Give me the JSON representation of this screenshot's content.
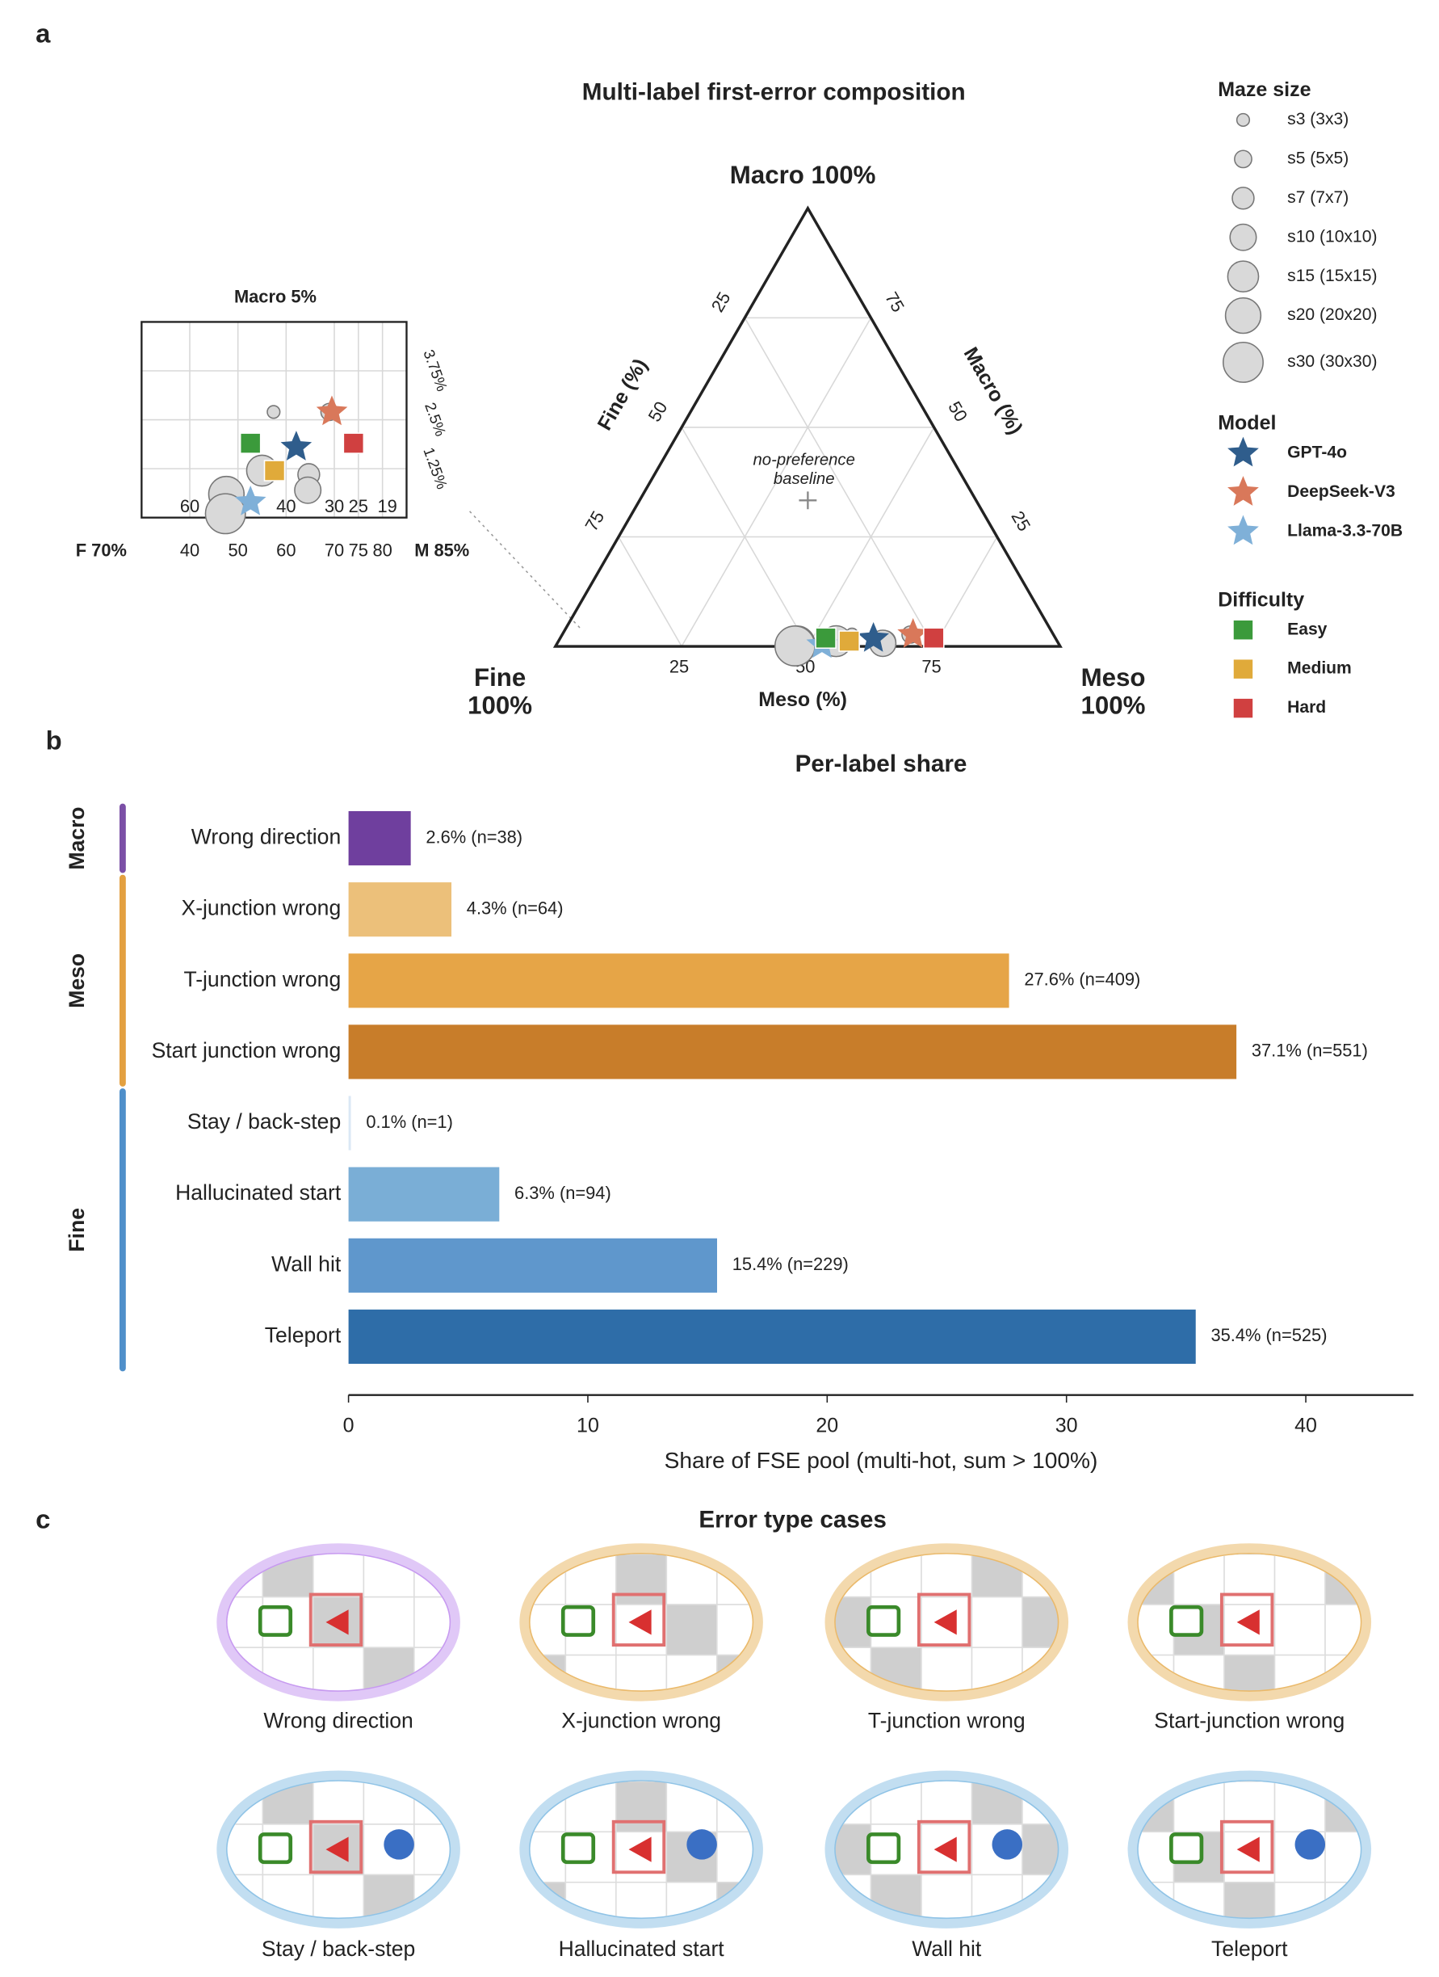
{
  "panel_labels": [
    "a",
    "b",
    "c"
  ],
  "chart_data": [
    {
      "type": "ternary",
      "title": "Multi-label first-error composition",
      "corners": {
        "macro": [
          "Macro 100%"
        ],
        "fine": [
          "Fine",
          "100%"
        ],
        "meso": [
          "Meso",
          "100%"
        ]
      },
      "axis_labels": {
        "fine": "Fine (%)",
        "macro": "Macro (%)",
        "meso": "Meso (%)"
      },
      "corner_colors": {
        "macro": "#7b4fa6",
        "fine": "#4f8fca",
        "meso": "#e3a040"
      },
      "ticks": [
        25,
        50,
        75
      ],
      "grid": true,
      "baseline": {
        "label": [
          "no-preference",
          "baseline"
        ],
        "values": [
          33.3,
          33.3,
          33.3
        ]
      },
      "groups": [
        {
          "title": "Maze size",
          "marker": "circle",
          "series": [
            {
              "name": "s3 (3x3)",
              "color": "#d9d9d9",
              "values": [
                39.9,
                57.4,
                2.7
              ]
            },
            {
              "name": "s5 (5x5)",
              "color": "#d9d9d9",
              "values": [
                28.3,
                69.0,
                2.7
              ]
            },
            {
              "name": "s7 (7x7)",
              "color": "#d9d9d9",
              "values": [
                34.2,
                64.7,
                1.1
              ]
            },
            {
              "name": "s10 (10x10)",
              "color": "#d9d9d9",
              "values": [
                34.8,
                64.5,
                0.7
              ]
            },
            {
              "name": "s15 (15x15)",
              "color": "#d9d9d9",
              "values": [
                43.8,
                55.0,
                1.2
              ]
            },
            {
              "name": "s20 (20x20)",
              "color": "#d9d9d9",
              "values": [
                51.8,
                47.6,
                0.6
              ]
            },
            {
              "name": "s30 (30x30)",
              "color": "#d9d9d9",
              "values": [
                52.5,
                47.4,
                0.1
              ]
            }
          ]
        },
        {
          "title": "Model",
          "marker": "star",
          "series": [
            {
              "name": "GPT-4o",
              "color": "#2f5d8c",
              "values": [
                36.1,
                62.1,
                1.8
              ]
            },
            {
              "name": "DeepSeek-V3",
              "color": "#d9785a",
              "values": [
                27.8,
                69.5,
                2.7
              ]
            },
            {
              "name": "Llama-3.3-70B",
              "color": "#7fb0d8",
              "values": [
                47.0,
                52.6,
                0.4
              ]
            }
          ]
        },
        {
          "title": "Difficulty",
          "marker": "square",
          "series": [
            {
              "name": "Easy",
              "color": "#3b9a3b",
              "values": [
                45.5,
                52.6,
                1.9
              ]
            },
            {
              "name": "Medium",
              "color": "#e0aa3a",
              "values": [
                41.2,
                57.6,
                1.2
              ]
            },
            {
              "name": "Hard",
              "color": "#d04040",
              "values": [
                24.1,
                74.0,
                1.9
              ]
            }
          ]
        }
      ],
      "inset": {
        "title": "Macro 5%",
        "fine_label": "F 70%",
        "meso_label": "M 85%",
        "meso_lim": [
          30,
          85
        ],
        "macro_lim": [
          0,
          5
        ],
        "meso_ticks": [
          40,
          50,
          60,
          70,
          75,
          80
        ],
        "fine_ticks": [
          60,
          40,
          30,
          25,
          19
        ],
        "macro_ticks": [
          {
            "value": 1.25,
            "label": "1.25%"
          },
          {
            "value": 2.5,
            "label": "2.5%"
          },
          {
            "value": 3.75,
            "label": "3.75%"
          }
        ]
      }
    },
    {
      "type": "bar",
      "orientation": "horizontal",
      "title": "Per-label share",
      "xlabel": "Share of FSE pool (multi-hot, sum > 100%)",
      "xlim": [
        0,
        44.5
      ],
      "xticks": [
        0,
        10,
        20,
        30,
        40
      ],
      "groups": [
        {
          "name": "Macro",
          "color": "#7b4fa6",
          "categories": [
            "Wrong direction"
          ],
          "values": [
            2.6
          ],
          "value_labels": [
            "2.6% (n=38)"
          ],
          "colors": [
            "#6f3f9e"
          ]
        },
        {
          "name": "Meso",
          "color": "#e3a040",
          "categories": [
            "X-junction wrong",
            "T-junction wrong",
            "Start junction wrong"
          ],
          "values": [
            4.3,
            27.6,
            37.1
          ],
          "value_labels": [
            "4.3% (n=64)",
            "27.6% (n=409)",
            "37.1% (n=551)"
          ],
          "colors": [
            "#ecc07a",
            "#e6a547",
            "#c87d2a"
          ]
        },
        {
          "name": "Fine",
          "color": "#4f8fca",
          "categories": [
            "Stay / back-step",
            "Hallucinated start",
            "Wall hit",
            "Teleport"
          ],
          "values": [
            0.1,
            6.3,
            15.4,
            35.4
          ],
          "value_labels": [
            "0.1% (n=1)",
            "6.3% (n=94)",
            "15.4% (n=229)",
            "35.4% (n=525)"
          ],
          "colors": [
            "#dbe8f5",
            "#7aaed6",
            "#5f97cc",
            "#2e6da8"
          ]
        }
      ]
    }
  ],
  "error_cases": {
    "title": "Error type cases",
    "labels": [
      "Wrong direction",
      "X-junction wrong",
      "T-junction wrong",
      "Start-junction wrong",
      "Stay / back-step",
      "Hallucinated  start",
      "Wall hit",
      "Teleport"
    ],
    "ring_colors": [
      "#c79af0",
      "#eab96a",
      "#eab96a",
      "#eab96a",
      "#8fc3e6",
      "#8fc3e6",
      "#8fc3e6",
      "#8fc3e6"
    ]
  }
}
